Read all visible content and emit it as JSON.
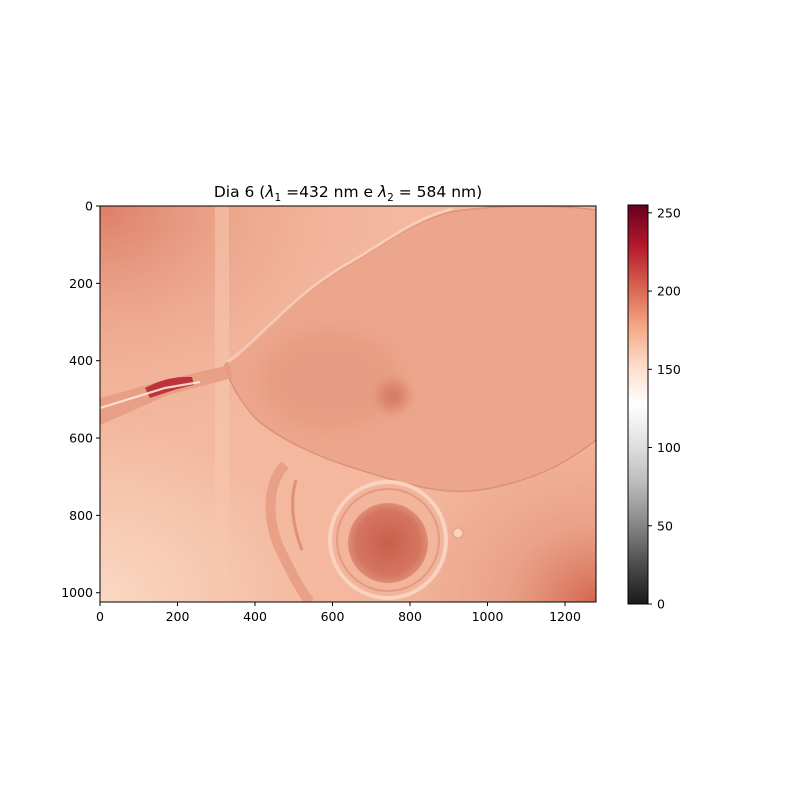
{
  "chart_data": [
    {
      "type": "heatmap",
      "image_kind": "microscope-image",
      "title": {
        "prefix": "Dia 6 (",
        "sym1": "λ",
        "sub1": "1",
        "mid1": " =432 nm e ",
        "sym2": "λ",
        "sub2": "2",
        "mid2": " = 584 nm)"
      },
      "x_ticks": [
        0,
        200,
        400,
        600,
        800,
        1000,
        1200
      ],
      "y_ticks": [
        0,
        200,
        400,
        600,
        800,
        1000
      ],
      "xlim": [
        0,
        1280
      ],
      "ylim": [
        1024,
        0
      ],
      "y_inverted": true,
      "grid": false,
      "colormap": "RdGy_r",
      "colorbar": {
        "range": [
          0,
          255
        ],
        "ticks": [
          0,
          50,
          100,
          150,
          200,
          250
        ],
        "stops": [
          "#1a1a1a",
          "#4d4d4d",
          "#878787",
          "#bababa",
          "#e0e0e0",
          "#ffffff",
          "#fddbc7",
          "#f4a582",
          "#d6604d",
          "#b2182b",
          "#67001f"
        ]
      },
      "image_features": {
        "background_level": 165,
        "upper_left_level": 195,
        "lower_right_level": 200,
        "body_level": 180,
        "dark_spot_level": 195,
        "ring_level": 185,
        "tube_band_level": 215
      }
    }
  ]
}
